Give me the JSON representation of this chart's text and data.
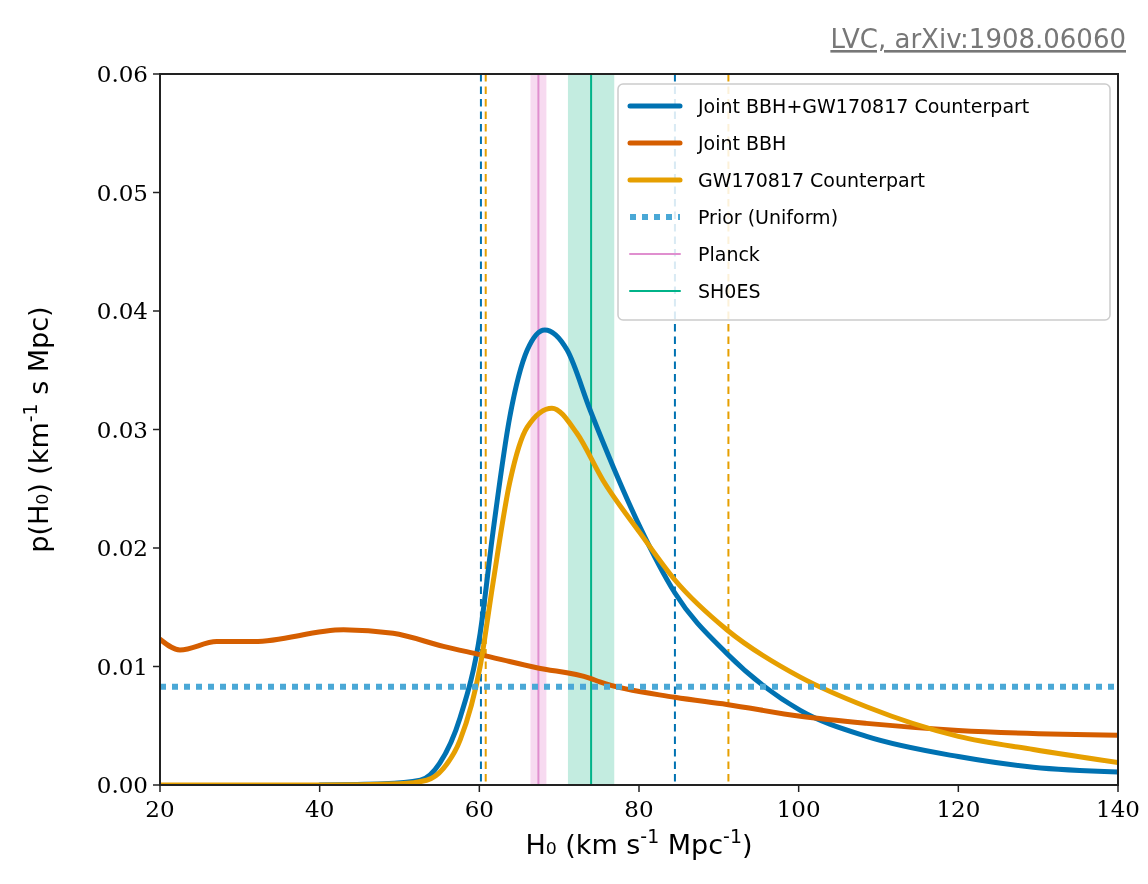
{
  "chart_data": {
    "type": "line",
    "xlabel": "H₀ (km s$^{-1}$ Mpc$^{-1}$)",
    "ylabel": "p(H₀) (km$^{-1}$ s Mpc)",
    "annotations": [
      "LVC, arXiv:1908.06060"
    ],
    "xlim": [
      20,
      140
    ],
    "xticks": [
      20,
      40,
      60,
      80,
      100,
      120,
      140
    ],
    "ylim": [
      0,
      0.06
    ],
    "yticks": [
      {
        "value": 0,
        "label": "0.00"
      },
      {
        "value": 0.01,
        "label": "0.01"
      },
      {
        "value": 0.02,
        "label": "0.02"
      },
      {
        "value": 0.03,
        "label": "0.03"
      },
      {
        "value": 0.04,
        "label": "0.04"
      },
      {
        "value": 0.05,
        "label": "0.05"
      },
      {
        "value": 0.06,
        "label": "0.06"
      }
    ],
    "legend": "top right",
    "series": [
      {
        "name": "Joint BBH+GW170817 Counterpart",
        "color": "#0072b2",
        "x": [
          40,
          48,
          52.6,
          55,
          57.6,
          60.1,
          61.7,
          63.8,
          66,
          68.2,
          71,
          73.9,
          76.8,
          80.1,
          84.5,
          91,
          100.2,
          108.5,
          120,
          129.4,
          140
        ],
        "values": [
          0,
          0.0001,
          0.0004,
          0.0018,
          0.0057,
          0.0128,
          0.0213,
          0.031,
          0.0367,
          0.0384,
          0.0367,
          0.0316,
          0.0268,
          0.0218,
          0.0162,
          0.0111,
          0.0063,
          0.0041,
          0.0024,
          0.0015,
          0.0011
        ]
      },
      {
        "name": "Joint BBH",
        "color": "#d55e00",
        "x": [
          20,
          22.5,
          27.1,
          31.7,
          43,
          49.2,
          55.5,
          60.1,
          67.2,
          73.9,
          75.1,
          84.5,
          91,
          100.2,
          108.5,
          120,
          140
        ],
        "values": [
          0.0123,
          0.0114,
          0.0121,
          0.0121,
          0.0131,
          0.0128,
          0.0117,
          0.011,
          0.0099,
          0.009,
          0.0087,
          0.0074,
          0.0068,
          0.0058,
          0.0052,
          0.0046,
          0.0042
        ]
      },
      {
        "name": "GW170817 Counterpart",
        "color": "#e69f00",
        "x": [
          20,
          30,
          40,
          50,
          53.4,
          55.5,
          57.6,
          60.1,
          61.7,
          63.8,
          66,
          69.1,
          72.2,
          75.5,
          80.1,
          84.5,
          91,
          100.2,
          108.5,
          120,
          129.4,
          140
        ],
        "values": [
          0,
          0,
          0,
          0.0001,
          0.0004,
          0.0014,
          0.0038,
          0.01,
          0.017,
          0.0255,
          0.0302,
          0.0318,
          0.0297,
          0.0257,
          0.0213,
          0.0173,
          0.0131,
          0.0091,
          0.0066,
          0.0041,
          0.003,
          0.0019
        ]
      },
      {
        "name": "Prior (Uniform)",
        "color": "#4aa8d6",
        "line_style": "dotted",
        "x": [
          20,
          140
        ],
        "values": [
          0.0083,
          0.0083
        ]
      },
      {
        "name": "Planck",
        "color": "#e08fcf",
        "x": [
          67.4,
          67.4
        ],
        "values": [
          0,
          0.06
        ]
      },
      {
        "name": "SH0ES",
        "color": "#00b389",
        "x": [
          74.0,
          74.0
        ],
        "values": [
          0,
          0.06
        ]
      }
    ],
    "bands": [
      {
        "axis": "x",
        "from": 66.4,
        "to": 68.4,
        "color": "#f6d6ee"
      },
      {
        "axis": "x",
        "from": 71.1,
        "to": 76.9,
        "color": "#bdeadd"
      }
    ],
    "ref_lines": [
      {
        "axis": "x",
        "value": 60.2,
        "color": "#0072b2",
        "line_style": "dashed"
      },
      {
        "axis": "x",
        "value": 60.8,
        "color": "#e69f00",
        "line_style": "dashed"
      },
      {
        "axis": "x",
        "value": 84.5,
        "color": "#0072b2",
        "line_style": "dashed"
      },
      {
        "axis": "x",
        "value": 91.2,
        "color": "#e69f00",
        "line_style": "dashed"
      }
    ]
  }
}
